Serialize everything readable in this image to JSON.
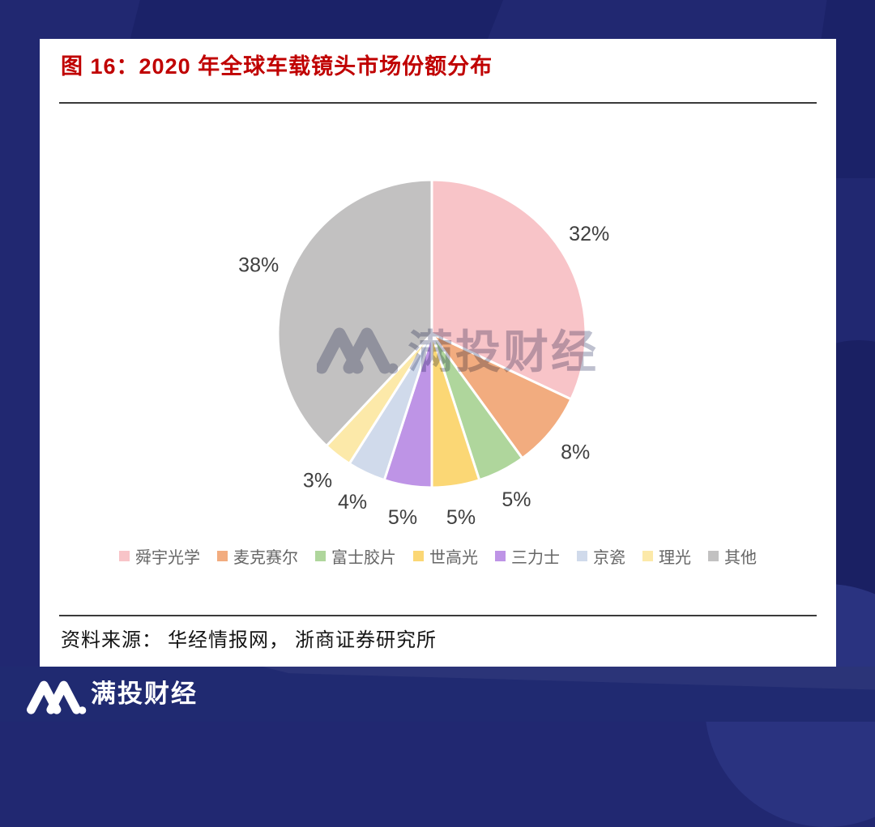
{
  "figure": {
    "title": "图 16：2020 年全球车载镜头市场份额分布",
    "title_color": "#C00000",
    "source": "资料来源： 华经情报网， 浙商证券研究所",
    "watermark": {
      "logo": "mantou-m-logo",
      "text": "满投财经"
    }
  },
  "footer": {
    "brand": "满投财经",
    "logo": "mantou-m-logo",
    "bar_color": "#202A71"
  },
  "page_background_color": "#212871",
  "chart_data": {
    "type": "pie",
    "title": "2020 年全球车载镜头市场份额分布",
    "start_angle_deg": 0,
    "direction": "clockwise",
    "legend_position": "bottom",
    "slice_border_color": "#ffffff",
    "label_color": "#3f3f3f",
    "series": [
      {
        "name": "舜宇光学",
        "value": 32,
        "label": "32%",
        "color": "#F8C4C8"
      },
      {
        "name": "麦克赛尔",
        "value": 8,
        "label": "8%",
        "color": "#F2AC7F"
      },
      {
        "name": "富士胶片",
        "value": 5,
        "label": "5%",
        "color": "#AFD69C"
      },
      {
        "name": "世高光",
        "value": 5,
        "label": "5%",
        "color": "#FBD775"
      },
      {
        "name": "三力士",
        "value": 5,
        "label": "5%",
        "color": "#BE94E6"
      },
      {
        "name": "京瓷",
        "value": 4,
        "label": "4%",
        "color": "#D0DAEB"
      },
      {
        "name": "理光",
        "value": 3,
        "label": "3%",
        "color": "#FCE9A9"
      },
      {
        "name": "其他",
        "value": 38,
        "label": "38%",
        "color": "#C2C1C1"
      }
    ]
  }
}
